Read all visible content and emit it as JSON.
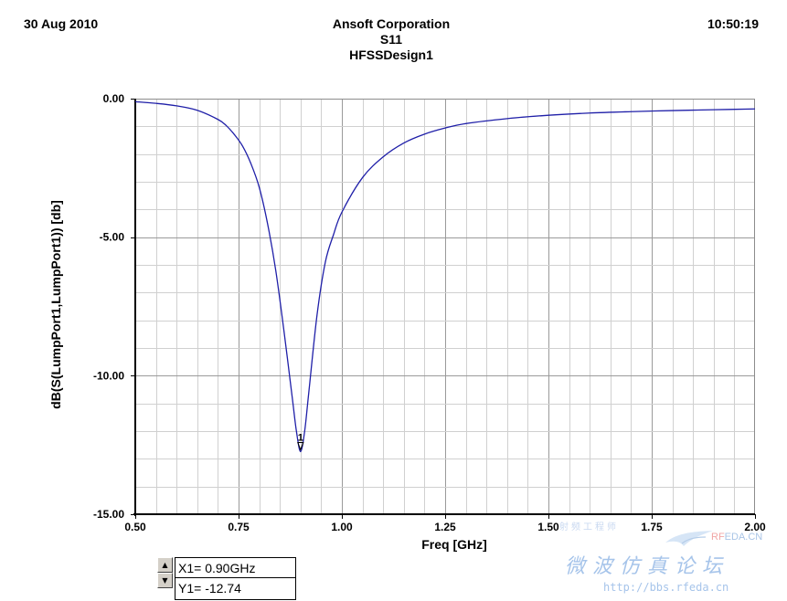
{
  "header": {
    "date": "30 Aug 2010",
    "company": "Ansoft Corporation",
    "plot_name": "S11",
    "design_name": "HFSSDesign1",
    "time": "10:50:19"
  },
  "chart_data": {
    "type": "line",
    "title": "S11",
    "xlabel": "Freq [GHz]",
    "ylabel": "dB(S(LumpPort1,LumpPort1)) [db]",
    "xlim": [
      0.5,
      2.0
    ],
    "ylim": [
      -15.0,
      0.0
    ],
    "x_ticks": [
      0.5,
      0.75,
      1.0,
      1.25,
      1.5,
      1.75,
      2.0
    ],
    "x_tick_labels": [
      "0.50",
      "0.75",
      "1.00",
      "1.25",
      "1.50",
      "1.75",
      "2.00"
    ],
    "y_ticks": [
      0.0,
      -5.0,
      -10.0,
      -15.0
    ],
    "y_tick_labels": [
      "0.00",
      "-5.00",
      "-10.00",
      "-15.00"
    ],
    "grid": true,
    "legend": "none",
    "series": [
      {
        "color": "#1f1fa8",
        "x": [
          0.5,
          0.55,
          0.6,
          0.65,
          0.7,
          0.72,
          0.74,
          0.76,
          0.78,
          0.8,
          0.82,
          0.84,
          0.86,
          0.88,
          0.89,
          0.9,
          0.91,
          0.92,
          0.94,
          0.96,
          0.98,
          1.0,
          1.05,
          1.1,
          1.15,
          1.2,
          1.25,
          1.3,
          1.4,
          1.5,
          1.6,
          1.7,
          1.8,
          1.9,
          2.0
        ],
        "y": [
          -0.11,
          -0.17,
          -0.26,
          -0.42,
          -0.75,
          -0.97,
          -1.3,
          -1.72,
          -2.35,
          -3.2,
          -4.5,
          -6.2,
          -8.4,
          -10.8,
          -12.0,
          -12.74,
          -12.0,
          -10.6,
          -7.8,
          -5.9,
          -4.9,
          -4.1,
          -2.85,
          -2.1,
          -1.6,
          -1.28,
          -1.06,
          -0.9,
          -0.72,
          -0.6,
          -0.52,
          -0.47,
          -0.43,
          -0.4,
          -0.37
        ]
      }
    ],
    "markers": [
      {
        "label": "1",
        "x": 0.9,
        "y": -12.74
      }
    ]
  },
  "marker_readout": {
    "x_text": "X1= 0.90GHz",
    "y_text": "Y1= -12.74"
  },
  "watermark": {
    "brand_a": "RF",
    "brand_b": "EDA.CN",
    "chinese": "微波仿真论坛",
    "url": "http://bbs.rfeda.cn",
    "small": "射频工程师"
  }
}
